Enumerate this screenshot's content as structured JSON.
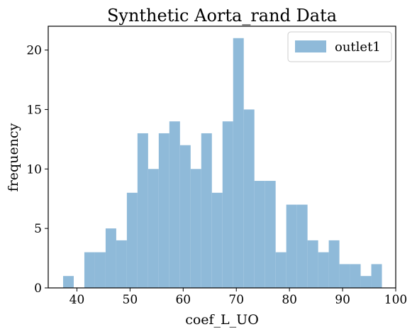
{
  "chart_data": {
    "type": "bar",
    "title": "Synthetic Aorta_rand Data",
    "xlabel": "coef_L_UO",
    "ylabel": "frequency",
    "xlim": [
      34.6,
      100
    ],
    "ylim": [
      0,
      22
    ],
    "xticks": [
      40,
      50,
      60,
      70,
      80,
      90,
      100
    ],
    "yticks": [
      0,
      5,
      10,
      15,
      20
    ],
    "bin_edges": [
      37.4,
      39.4,
      41.4,
      43.4,
      45.4,
      47.4,
      49.4,
      51.4,
      53.4,
      55.4,
      57.4,
      59.4,
      61.4,
      63.4,
      65.4,
      67.4,
      69.4,
      71.4,
      73.4,
      75.4,
      77.4,
      79.4,
      81.4,
      83.4,
      85.4,
      87.4,
      89.4,
      91.4,
      93.4,
      95.4,
      97.4
    ],
    "series": [
      {
        "name": "outlet1",
        "color": "#8fbad9",
        "counts": [
          1,
          0,
          3,
          3,
          5,
          4,
          8,
          13,
          10,
          13,
          14,
          12,
          10,
          13,
          8,
          14,
          21,
          15,
          9,
          9,
          3,
          7,
          7,
          4,
          3,
          4,
          2,
          2,
          1,
          2
        ]
      }
    ],
    "legend": {
      "position": "top-right"
    },
    "grid": false
  }
}
